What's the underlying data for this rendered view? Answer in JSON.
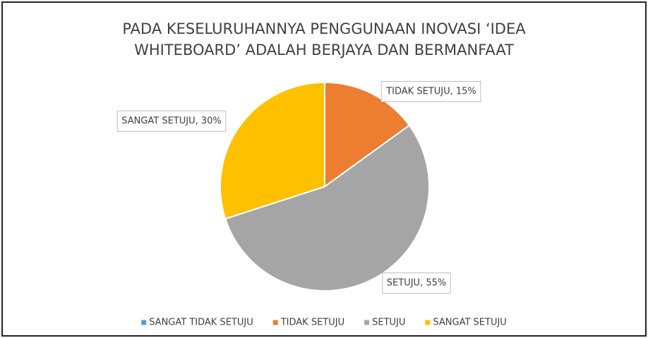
{
  "chart_data": {
    "type": "pie",
    "title": "PADA KESELURUHANNYA PENGGUNAAN INOVASI ‘IDEA WHITEBOARD’ ADALAH BERJAYA DAN BERMANFAAT",
    "categories": [
      "SANGAT TIDAK SETUJU",
      "TIDAK SETUJU",
      "SETUJU",
      "SANGAT SETUJU"
    ],
    "values": [
      0,
      15,
      55,
      30
    ],
    "value_labels": [
      null,
      "TIDAK SETUJU, 15%",
      "SETUJU, 55%",
      "SANGAT SETUJU, 30%"
    ],
    "colors": [
      "#5b9bd5",
      "#ed7d31",
      "#a5a5a5",
      "#ffc000"
    ],
    "legend": "bottom"
  }
}
